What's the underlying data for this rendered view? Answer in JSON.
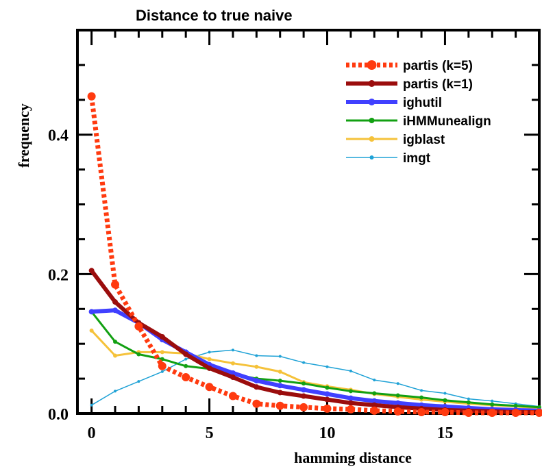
{
  "chart_data": {
    "type": "line",
    "title": "Distance to true naive",
    "xlabel": "hamming distance",
    "ylabel": "frequency",
    "xlim": [
      -0.6,
      19
    ],
    "ylim": [
      0,
      0.55
    ],
    "xticks": [
      0,
      5,
      10,
      15
    ],
    "yticks": [
      0.0,
      0.2,
      0.4
    ],
    "ytick_labels": [
      "0.0",
      "0.2",
      "0.4"
    ],
    "legend_position": "top-right",
    "x": [
      0,
      1,
      2,
      3,
      4,
      5,
      6,
      7,
      8,
      9,
      10,
      11,
      12,
      13,
      14,
      15,
      16,
      17,
      18,
      19
    ],
    "series": [
      {
        "name": "partis (k=5)",
        "color": "#ff3a0f",
        "style": "dotted-thick",
        "values": [
          0.455,
          0.185,
          0.125,
          0.068,
          0.052,
          0.038,
          0.025,
          0.014,
          0.011,
          0.009,
          0.007,
          0.006,
          0.004,
          0.003,
          0.002,
          0.002,
          0.001,
          0.001,
          0.001,
          0.001
        ]
      },
      {
        "name": "partis (k=1)",
        "color": "#9b0d0d",
        "style": "solid-thick",
        "values": [
          0.205,
          0.16,
          0.13,
          0.11,
          0.085,
          0.065,
          0.052,
          0.038,
          0.03,
          0.025,
          0.02,
          0.015,
          0.012,
          0.009,
          0.007,
          0.005,
          0.004,
          0.003,
          0.002,
          0.002
        ]
      },
      {
        "name": "ighutil",
        "color": "#4040ff",
        "style": "solid-thick",
        "values": [
          0.146,
          0.148,
          0.13,
          0.106,
          0.088,
          0.07,
          0.058,
          0.047,
          0.04,
          0.034,
          0.028,
          0.022,
          0.018,
          0.015,
          0.012,
          0.01,
          0.008,
          0.006,
          0.005,
          0.004
        ]
      },
      {
        "name": "iHMMunealign",
        "color": "#12a012",
        "style": "solid",
        "values": [
          0.146,
          0.103,
          0.085,
          0.078,
          0.068,
          0.064,
          0.057,
          0.05,
          0.047,
          0.043,
          0.037,
          0.032,
          0.029,
          0.026,
          0.023,
          0.019,
          0.016,
          0.013,
          0.011,
          0.009
        ]
      },
      {
        "name": "igblast",
        "color": "#f5c23a",
        "style": "solid",
        "values": [
          0.119,
          0.083,
          0.088,
          0.088,
          0.086,
          0.078,
          0.072,
          0.067,
          0.06,
          0.045,
          0.039,
          0.034,
          0.028,
          0.024,
          0.02,
          0.017,
          0.014,
          0.012,
          0.01,
          0.008
        ]
      },
      {
        "name": "imgt",
        "color": "#1fa2d6",
        "style": "thin",
        "values": [
          0.012,
          0.032,
          0.046,
          0.06,
          0.078,
          0.088,
          0.091,
          0.083,
          0.082,
          0.073,
          0.067,
          0.061,
          0.048,
          0.043,
          0.033,
          0.029,
          0.021,
          0.018,
          0.014,
          0.01
        ]
      }
    ]
  }
}
